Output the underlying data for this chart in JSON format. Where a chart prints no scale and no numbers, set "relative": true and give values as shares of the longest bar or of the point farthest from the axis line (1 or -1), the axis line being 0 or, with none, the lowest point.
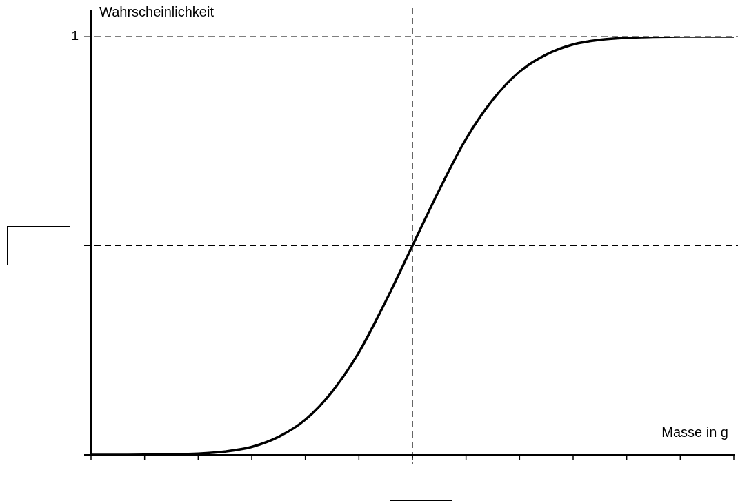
{
  "chart_data": {
    "type": "line",
    "xlabel": "Masse in g",
    "ylabel": "Wahrscheinlichkeit",
    "relative": true,
    "color": "#000000",
    "line_style": "solid",
    "marker": "none",
    "legend": false,
    "categories": [
      null,
      null,
      null,
      null,
      null,
      null,
      null,
      null,
      null,
      null,
      null,
      null,
      null,
      null,
      null,
      null,
      null,
      null,
      null,
      null,
      null,
      null,
      null,
      null,
      null
    ],
    "values": [
      0,
      0,
      0.0003,
      0.001,
      0.003,
      0.008,
      0.019,
      0.043,
      0.084,
      0.151,
      0.245,
      0.367,
      0.5,
      0.633,
      0.755,
      0.849,
      0.916,
      0.957,
      0.981,
      0.992,
      0.997,
      0.999,
      1,
      1,
      1
    ],
    "ref_lines": [
      {
        "axis": "y",
        "value": 1,
        "label": "1",
        "color": "#000000",
        "line_style": "dashed"
      },
      {
        "axis": "y",
        "value": 0.5,
        "label": null,
        "color": "#000000",
        "line_style": "dashed"
      }
    ]
  }
}
